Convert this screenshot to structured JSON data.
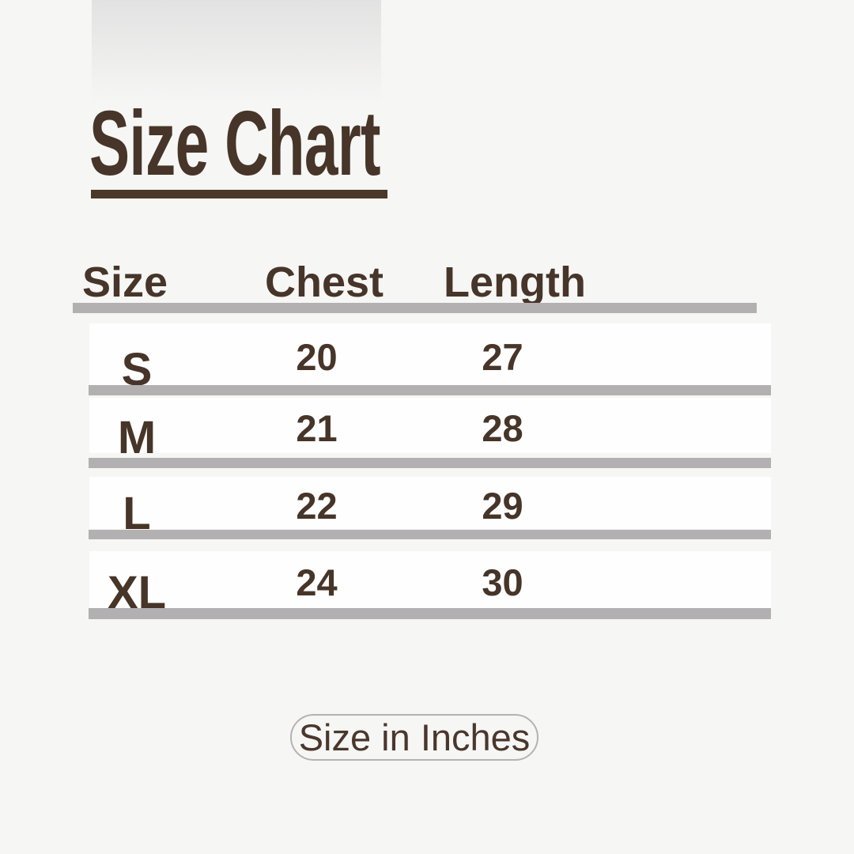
{
  "title": "Size Chart",
  "table": {
    "headers": [
      "Size",
      "Chest",
      "Length"
    ],
    "rows": [
      {
        "size": "S",
        "chest": "20",
        "length": "27"
      },
      {
        "size": "M",
        "chest": "21",
        "length": "28"
      },
      {
        "size": "L",
        "chest": "22",
        "length": "29"
      },
      {
        "size": "XL",
        "chest": "24",
        "length": "30"
      }
    ]
  },
  "units_label": "Size in Inches",
  "colors": {
    "text_brown": "#463528",
    "divider_gray": "#b2b0b0",
    "background": "#f6f6f5",
    "row_white": "#fefefe",
    "pill_border": "#b5b3b1"
  },
  "chart_data": {
    "type": "table",
    "title": "Size Chart",
    "columns": [
      "Size",
      "Chest",
      "Length"
    ],
    "rows": [
      [
        "S",
        20,
        27
      ],
      [
        "M",
        21,
        28
      ],
      [
        "L",
        22,
        29
      ],
      [
        "XL",
        24,
        30
      ]
    ],
    "units": "Inches",
    "note": "Size in Inches"
  }
}
